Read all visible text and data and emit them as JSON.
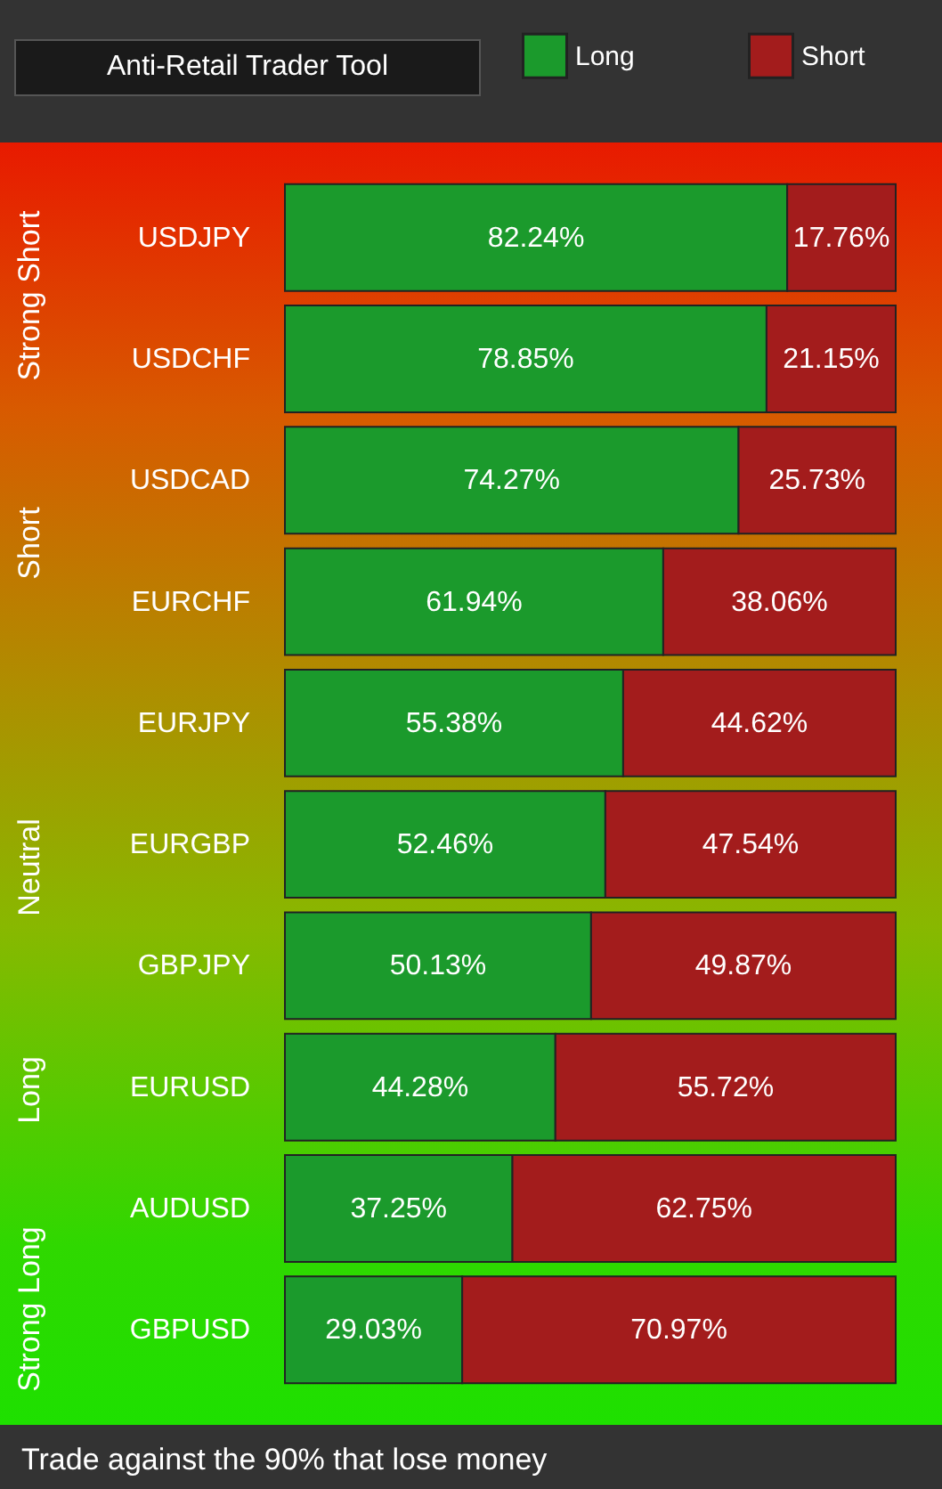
{
  "chart_data": {
    "type": "bar",
    "title": "Anti-Retail Trader Tool",
    "orientation": "horizontal",
    "stacked": true,
    "legend": "top right",
    "tick_labels": "y",
    "categories": [
      "USDJPY",
      "USDCHF",
      "USDCAD",
      "EURCHF",
      "EURJPY",
      "EURGBP",
      "GBPJPY",
      "EURUSD",
      "AUDUSD",
      "GBPUSD"
    ],
    "series": [
      {
        "name": "Long",
        "color": "#1b9a2c",
        "values": [
          82.24,
          78.85,
          74.27,
          61.94,
          55.38,
          52.46,
          50.13,
          44.28,
          37.25,
          29.03
        ],
        "value_labels": [
          "82.24%",
          "78.85%",
          "74.27%",
          "61.94%",
          "55.38%",
          "52.46%",
          "50.13%",
          "44.28%",
          "37.25%",
          "29.03%"
        ]
      },
      {
        "name": "Short",
        "color": "#a31c1c",
        "values": [
          17.76,
          21.15,
          25.73,
          38.06,
          44.62,
          47.54,
          49.87,
          55.72,
          62.75,
          70.97
        ],
        "value_labels": [
          "17.76%",
          "21.15%",
          "25.73%",
          "38.06%",
          "44.62%",
          "47.54%",
          "49.87%",
          "55.72%",
          "62.75%",
          "70.97%"
        ]
      }
    ],
    "annotations": [
      "Strong Short",
      "Short",
      "Neutral",
      "Long",
      "Strong Long",
      "Trade against the 90% that lose money"
    ]
  }
}
